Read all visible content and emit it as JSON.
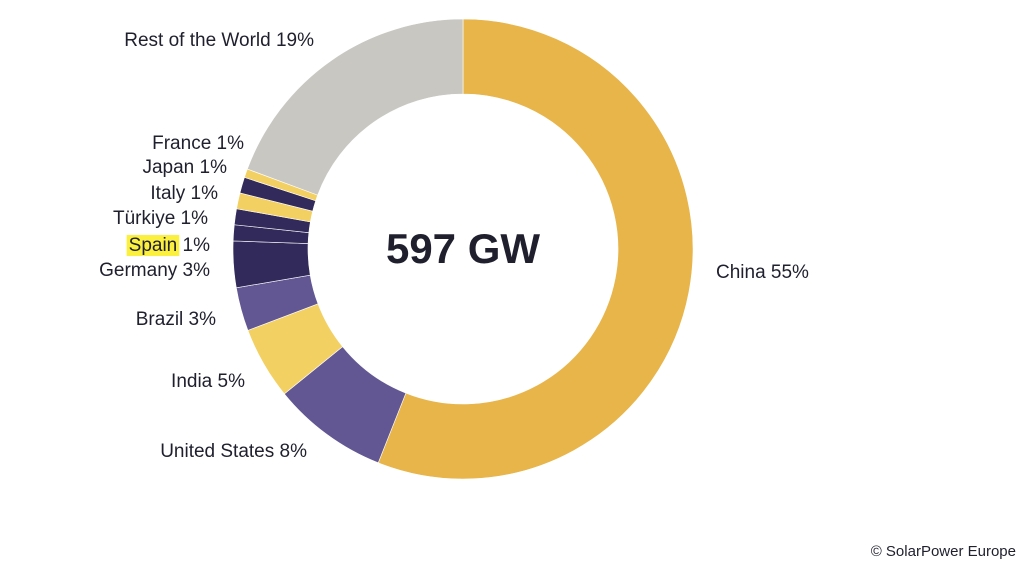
{
  "chart_data": {
    "type": "pie",
    "donut": true,
    "center_label": "597 GW",
    "slices": [
      {
        "label": "China 55%",
        "value": 55,
        "color": "#e8b54b"
      },
      {
        "label": "United States 8%",
        "value": 8,
        "color": "#625792"
      },
      {
        "label": "India 5%",
        "value": 5,
        "color": "#f3d062"
      },
      {
        "label": "Brazil 3%",
        "value": 3,
        "color": "#625792"
      },
      {
        "label": "Germany 3%",
        "value": 3.2,
        "color": "#322a5a"
      },
      {
        "label": "Spain 1%",
        "value": 1.1,
        "color": "#322a5a",
        "highlight": "#fbf03d"
      },
      {
        "label": "Türkiye 1%",
        "value": 1.1,
        "color": "#322a5a"
      },
      {
        "label": "Italy 1%",
        "value": 1.1,
        "color": "#f3d062"
      },
      {
        "label": "Japan 1%",
        "value": 1.1,
        "color": "#322a5a"
      },
      {
        "label": "France 1%",
        "value": 0.6,
        "color": "#f3d062"
      },
      {
        "label": "Rest of the World 19%",
        "value": 19,
        "color": "#c8c7c1"
      }
    ]
  },
  "credit": "© SolarPower Europe"
}
